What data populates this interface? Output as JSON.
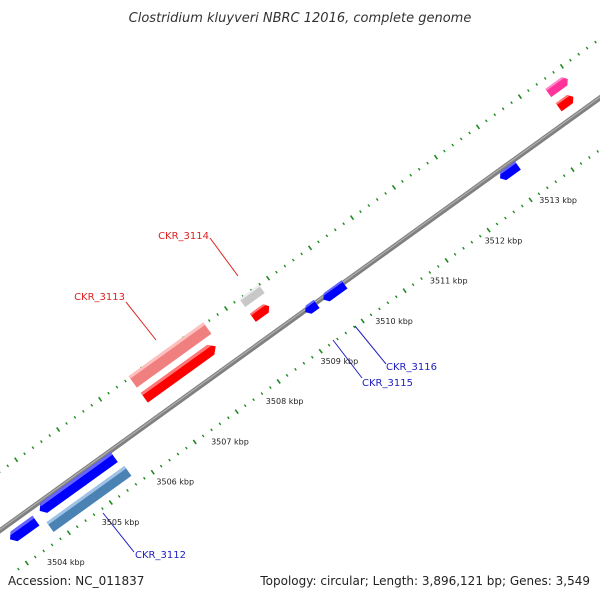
{
  "title": "Clostridium kluyveri NBRC 12016, complete genome",
  "accession": "Accession: NC_011837",
  "summary": "Topology: circular; Length: 3,896,121 bp; Genes: 3,549",
  "colors": {
    "backbone": "#808080",
    "tick": "#1e8c1e",
    "forward_gene": "#ff0000",
    "forward_gene_light": "#f08080",
    "reverse_gene": "#0000ff",
    "reverse_gene_light": "#4a82b4",
    "hypothetical": "#c8c8c8",
    "rna": "#ff3399",
    "label_red": "#e02020",
    "label_blue": "#2020c0"
  },
  "scale_labels": [
    {
      "kbp": 3504,
      "text": "3504 kbp"
    },
    {
      "kbp": 3505,
      "text": "3505 kbp"
    },
    {
      "kbp": 3506,
      "text": "3506 kbp"
    },
    {
      "kbp": 3507,
      "text": "3507 kbp"
    },
    {
      "kbp": 3508,
      "text": "3508 kbp"
    },
    {
      "kbp": 3509,
      "text": "3509 kbp"
    },
    {
      "kbp": 3510,
      "text": "3510 kbp"
    },
    {
      "kbp": 3511,
      "text": "3511 kbp"
    },
    {
      "kbp": 3512,
      "text": "3512 kbp"
    },
    {
      "kbp": 3513,
      "text": "3513 kbp"
    }
  ],
  "gene_labels": [
    {
      "name": "CKR_3114",
      "strand": "forward"
    },
    {
      "name": "CKR_3113",
      "strand": "forward"
    },
    {
      "name": "CKR_3116",
      "strand": "reverse"
    },
    {
      "name": "CKR_3115",
      "strand": "reverse"
    },
    {
      "name": "CKR_3112",
      "strand": "reverse"
    }
  ]
}
